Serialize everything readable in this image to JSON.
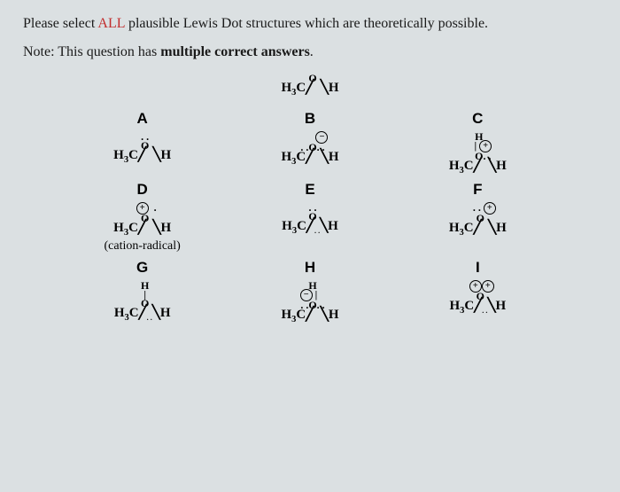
{
  "question": {
    "line1_pre": "Please select ",
    "line1_red": "ALL",
    "line1_post": " plausible Lewis Dot structures which are theoretically possible.",
    "line2_pre": "Note: This question has ",
    "line2_bold": "multiple correct answers",
    "line2_post": "."
  },
  "reference": {
    "top": "O",
    "bottom": "H₃C⁀  ⁀H"
  },
  "options": {
    "A": {
      "label": "A",
      "top": ". .",
      "mid": "O",
      "bottom": "H₃C⁀  ⁀H"
    },
    "B": {
      "label": "B",
      "top": "⊖",
      "mid": ". . O . .",
      "bottom": "H₃C⁀  ⁀H"
    },
    "C": {
      "label": "C",
      "top": "H",
      "mid": "| ⊕",
      "mid2": "O . .",
      "bottom": "H₃C⁀  ⁀H"
    },
    "D": {
      "label": "D",
      "top": "⊕  .",
      "mid": "O",
      "bottom": "H₃C⁀  ⁀H",
      "caption": "(cation-radical)"
    },
    "E": {
      "label": "E",
      "top": ". .",
      "mid": "O",
      "bottom": "H₃C⁀ .. ⁀H"
    },
    "F": {
      "label": "F",
      "top": ". .  ⊕",
      "mid": "O",
      "bottom": "H₃C⁀  ⁀H"
    },
    "G": {
      "label": "G",
      "top": "H",
      "mid": "|",
      "mid2": "O",
      "bottom": "H₃C⁀ .. ⁀H"
    },
    "H": {
      "label": "H",
      "top": "H",
      "mid": "⊖ |",
      "mid2": ". . O . .",
      "bottom": "H₃C⁀  ⁀H"
    },
    "I": {
      "label": "I",
      "top": "⊕⊕",
      "mid": "O",
      "bottom": "H₃C⁀ .. ⁀H"
    }
  },
  "colors": {
    "bg": "#dbe0e2",
    "text": "#1a1a1a",
    "red": "#c22c2c"
  }
}
